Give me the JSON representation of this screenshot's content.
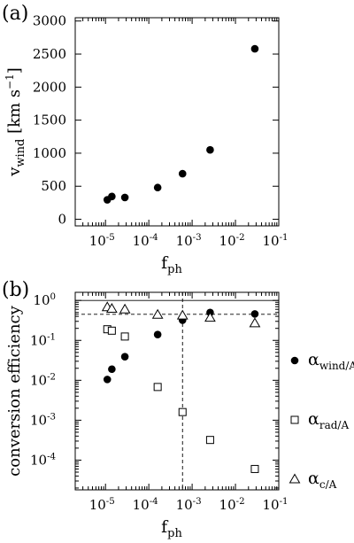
{
  "chart_data": [
    {
      "type": "scatter",
      "panel_label": "(a)",
      "xscale": "log",
      "xlim": [
        2e-06,
        0.1
      ],
      "ylim": [
        -100,
        3050
      ],
      "xlabel": {
        "main": "f",
        "sub": "ph"
      },
      "ylabel": {
        "main": "v",
        "sub": "wind",
        "units": "[km s",
        "units_exp": "−1",
        "units_close": "]"
      },
      "xticks": [
        {
          "value": 1e-05,
          "base": "10",
          "exp": "-5"
        },
        {
          "value": 0.0001,
          "base": "10",
          "exp": "-4"
        },
        {
          "value": 0.001,
          "base": "10",
          "exp": "-3"
        },
        {
          "value": 0.01,
          "base": "10",
          "exp": "-2"
        },
        {
          "value": 0.1,
          "base": "10",
          "exp": "-1"
        }
      ],
      "yticks": [
        {
          "value": 0,
          "label": "0"
        },
        {
          "value": 500,
          "label": "500"
        },
        {
          "value": 1000,
          "label": "1000"
        },
        {
          "value": 1500,
          "label": "1500"
        },
        {
          "value": 2000,
          "label": "2000"
        },
        {
          "value": 2500,
          "label": "2500"
        },
        {
          "value": 3000,
          "label": "3000"
        }
      ],
      "series": [
        {
          "marker": "filled-circle",
          "x": [
            1.1e-05,
            1.4e-05,
            2.8e-05,
            0.00016,
            0.0006,
            0.0026,
            0.028
          ],
          "y": [
            295,
            345,
            330,
            480,
            690,
            1050,
            2580
          ]
        }
      ]
    },
    {
      "type": "scatter",
      "panel_label": "(b)",
      "xscale": "log",
      "yscale": "log",
      "xlim": [
        2e-06,
        0.1
      ],
      "ylim": [
        1.8e-05,
        1.6
      ],
      "xlabel": {
        "main": "f",
        "sub": "ph"
      },
      "ylabel": {
        "main": "conversion efficiency"
      },
      "xticks": [
        {
          "value": 1e-05,
          "base": "10",
          "exp": "-5"
        },
        {
          "value": 0.0001,
          "base": "10",
          "exp": "-4"
        },
        {
          "value": 0.001,
          "base": "10",
          "exp": "-3"
        },
        {
          "value": 0.01,
          "base": "10",
          "exp": "-2"
        },
        {
          "value": 0.1,
          "base": "10",
          "exp": "-1"
        }
      ],
      "yticks": [
        {
          "value": 1,
          "base": "10",
          "exp": "0"
        },
        {
          "value": 0.1,
          "base": "10",
          "exp": "-1"
        },
        {
          "value": 0.01,
          "base": "10",
          "exp": "-2"
        },
        {
          "value": 0.001,
          "base": "10",
          "exp": "-3"
        },
        {
          "value": 0.0001,
          "base": "10",
          "exp": "-4"
        }
      ],
      "reference_lines": [
        {
          "orientation": "horizontal",
          "value": 1,
          "style": "solid"
        },
        {
          "orientation": "horizontal",
          "value": 0.45,
          "style": "dashed"
        },
        {
          "orientation": "vertical",
          "value": 0.0006,
          "style": "dashed"
        }
      ],
      "legend_placement": "right",
      "series": [
        {
          "marker": "filled-circle",
          "legend": {
            "main": "α",
            "sub": "wind/A"
          },
          "x": [
            1.1e-05,
            1.4e-05,
            2.8e-05,
            0.00016,
            0.0006,
            0.0026,
            0.028
          ],
          "y": [
            0.0105,
            0.019,
            0.039,
            0.14,
            0.32,
            0.5,
            0.46
          ]
        },
        {
          "marker": "open-square",
          "legend": {
            "main": "α",
            "sub": "rad/A"
          },
          "x": [
            1.1e-05,
            1.4e-05,
            2.8e-05,
            0.00016,
            0.0006,
            0.0026,
            0.028
          ],
          "y": [
            0.19,
            0.175,
            0.125,
            0.0068,
            0.0016,
            0.00032,
            6e-05
          ]
        },
        {
          "marker": "open-triangle",
          "legend": {
            "main": "α",
            "sub": "c/A"
          },
          "x": [
            1.1e-05,
            1.4e-05,
            2.8e-05,
            0.00016,
            0.0006,
            0.0026,
            0.028
          ],
          "y": [
            0.68,
            0.62,
            0.6,
            0.44,
            0.42,
            0.37,
            0.27
          ]
        }
      ]
    }
  ]
}
